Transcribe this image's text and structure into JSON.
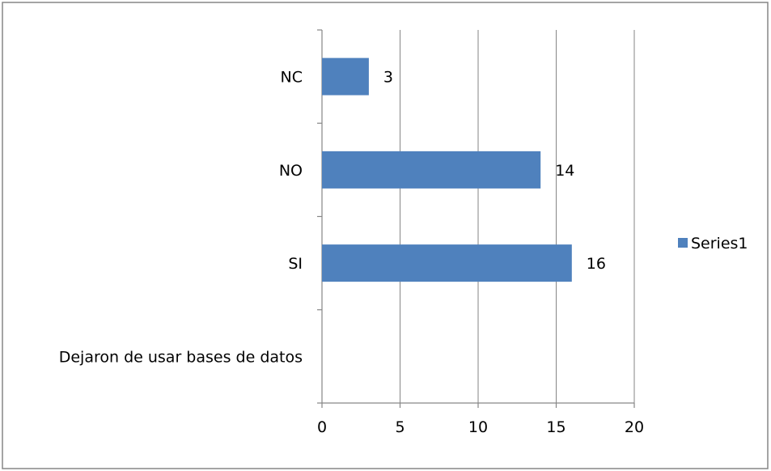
{
  "chart_data": {
    "type": "bar",
    "orientation": "horizontal",
    "categories": [
      "Dejaron de usar bases de datos",
      "SI",
      "NO",
      "NC"
    ],
    "series": [
      {
        "name": "Series1",
        "values": [
          null,
          16,
          14,
          3
        ]
      }
    ],
    "data_labels": [
      "",
      "16",
      "14",
      "3"
    ],
    "x_ticks": [
      0,
      5,
      10,
      15,
      20
    ],
    "xlim": [
      0,
      20
    ],
    "grid": true,
    "legend_position": "right",
    "colors": {
      "bar": "#4f81bd",
      "grid": "#868686",
      "frame": "#868686"
    }
  }
}
